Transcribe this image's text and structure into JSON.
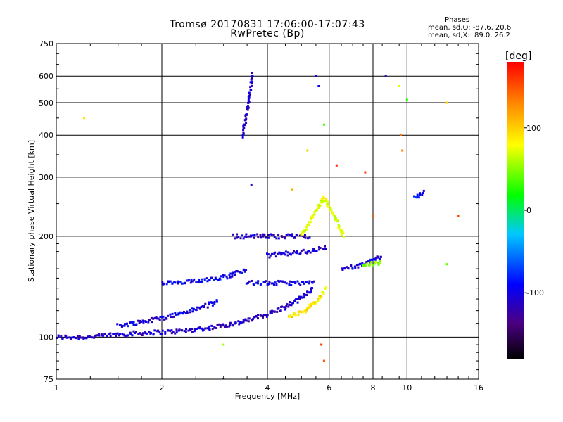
{
  "header": {
    "title_line1": "Tromsø 20170831 17:06:00-17:07:43",
    "title_line2": "RwPretec (Bp)",
    "stats_title": "Phases",
    "stats_o": "mean, sd,O: -87.6, 20.6",
    "stats_x": "mean, sd,X:  89.0, 26.2"
  },
  "chart_data": {
    "type": "scatter",
    "xlabel": "Frequency [MHz]",
    "ylabel": "Stationary phase Virtual Height [km]",
    "xscale": "log",
    "yscale": "log",
    "xlim": [
      1,
      16
    ],
    "ylim": [
      75,
      750
    ],
    "xticks": [
      1,
      2,
      4,
      6,
      8,
      10,
      16
    ],
    "yticks": [
      75,
      100,
      200,
      300,
      400,
      500,
      600,
      750
    ],
    "grid": true,
    "colorbar": {
      "label": "[deg]",
      "range": [
        -180,
        180
      ],
      "ticks": [
        100,
        0,
        -100
      ],
      "colormap": "rainbow"
    },
    "traces": [
      {
        "name": "",
        "phase": -110,
        "points": [
          [
            1.0,
            100
          ],
          [
            1.2,
            100
          ],
          [
            1.5,
            102
          ],
          [
            1.8,
            103
          ],
          [
            2.2,
            104
          ],
          [
            2.8,
            107
          ],
          [
            3.4,
            111
          ],
          [
            4.0,
            117
          ],
          [
            4.5,
            123
          ],
          [
            5.0,
            131
          ],
          [
            5.4,
            141
          ]
        ]
      },
      {
        "name": "",
        "phase": -100,
        "points": [
          [
            1.5,
            108
          ],
          [
            2.0,
            114
          ],
          [
            2.5,
            121
          ],
          [
            2.9,
            128
          ]
        ]
      },
      {
        "name": "",
        "phase": 90,
        "points": [
          [
            4.6,
            115
          ],
          [
            5.2,
            121
          ],
          [
            5.6,
            130
          ],
          [
            5.9,
            140
          ]
        ]
      },
      {
        "name": "",
        "phase": -95,
        "points": [
          [
            2.0,
            145
          ],
          [
            2.3,
            145
          ],
          [
            2.6,
            148
          ],
          [
            3.1,
            152
          ],
          [
            3.5,
            160
          ]
        ]
      },
      {
        "name": "",
        "phase": -100,
        "points": [
          [
            3.5,
            145
          ],
          [
            4.0,
            145
          ],
          [
            4.5,
            145
          ],
          [
            5.0,
            145
          ],
          [
            5.5,
            145
          ]
        ]
      },
      {
        "name": "",
        "phase": -105,
        "points": [
          [
            4.0,
            175
          ],
          [
            4.6,
            178
          ],
          [
            5.2,
            180
          ],
          [
            5.9,
            185
          ]
        ]
      },
      {
        "name": "",
        "phase": -110,
        "points": [
          [
            3.2,
            200
          ],
          [
            3.8,
            200
          ],
          [
            4.5,
            200
          ],
          [
            5.3,
            200
          ]
        ]
      },
      {
        "name": "",
        "phase": -110,
        "points": [
          [
            3.4,
            400
          ],
          [
            3.45,
            430
          ],
          [
            3.5,
            470
          ],
          [
            3.55,
            520
          ],
          [
            3.6,
            570
          ],
          [
            3.62,
            620
          ]
        ]
      },
      {
        "name": "",
        "phase": -100,
        "points": [
          [
            6.5,
            160
          ],
          [
            7.2,
            162
          ],
          [
            7.8,
            168
          ],
          [
            8.5,
            175
          ]
        ]
      },
      {
        "name": "",
        "phase": 40,
        "points": [
          [
            7.5,
            165
          ],
          [
            8.0,
            166
          ],
          [
            8.5,
            167
          ]
        ]
      },
      {
        "name": "",
        "phase": 70,
        "points": [
          [
            5.0,
            200
          ],
          [
            5.4,
            230
          ],
          [
            5.8,
            260
          ],
          [
            6.2,
            230
          ],
          [
            6.6,
            200
          ]
        ]
      },
      {
        "name": "",
        "phase": -90,
        "points": [
          [
            10.5,
            260
          ],
          [
            11.2,
            270
          ]
        ]
      }
    ],
    "sample_points": [
      {
        "x": 1.2,
        "y": 450,
        "phase": 90
      },
      {
        "x": 5.5,
        "y": 600,
        "phase": -110
      },
      {
        "x": 5.6,
        "y": 560,
        "phase": -100
      },
      {
        "x": 8.7,
        "y": 600,
        "phase": -120
      },
      {
        "x": 9.5,
        "y": 560,
        "phase": 70
      },
      {
        "x": 10.0,
        "y": 510,
        "phase": 10
      },
      {
        "x": 9.7,
        "y": 360,
        "phase": 130
      },
      {
        "x": 9.6,
        "y": 400,
        "phase": 140
      },
      {
        "x": 6.3,
        "y": 325,
        "phase": 170
      },
      {
        "x": 7.6,
        "y": 310,
        "phase": 160
      },
      {
        "x": 5.8,
        "y": 430,
        "phase": 20
      },
      {
        "x": 13.0,
        "y": 165,
        "phase": 30
      },
      {
        "x": 14.0,
        "y": 230,
        "phase": 150
      },
      {
        "x": 13.0,
        "y": 500,
        "phase": 100
      },
      {
        "x": 5.8,
        "y": 85,
        "phase": 150
      },
      {
        "x": 5.7,
        "y": 95,
        "phase": 160
      },
      {
        "x": 3.0,
        "y": 95,
        "phase": 50
      },
      {
        "x": 3.0,
        "y": 75,
        "phase": -110
      },
      {
        "x": 3.6,
        "y": 285,
        "phase": -110
      },
      {
        "x": 4.7,
        "y": 275,
        "phase": 110
      },
      {
        "x": 5.2,
        "y": 360,
        "phase": 100
      },
      {
        "x": 8.0,
        "y": 230,
        "phase": 150
      }
    ]
  }
}
